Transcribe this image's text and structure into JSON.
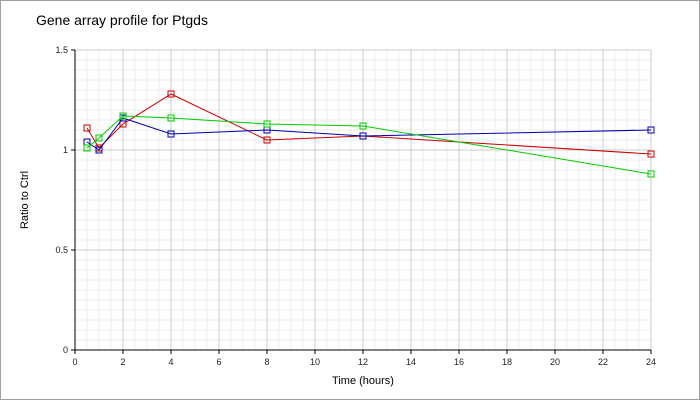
{
  "chart_data": {
    "type": "line",
    "title": "Gene array profile for Ptgds",
    "xlabel": "Time (hours)",
    "ylabel": "Ratio to Ctrl",
    "xlim": [
      0,
      24
    ],
    "ylim": [
      0,
      1.5
    ],
    "xticks": [
      0,
      2,
      4,
      6,
      8,
      10,
      12,
      14,
      16,
      18,
      20,
      22,
      24
    ],
    "yticks": [
      0,
      0.5,
      1,
      1.5
    ],
    "ytick_labels": [
      "0",
      "0.5",
      "1",
      "1.5"
    ],
    "grid": true,
    "series": [
      {
        "color": "#cc0000",
        "x": [
          0.5,
          1,
          2,
          4,
          8,
          12,
          24
        ],
        "y": [
          1.11,
          1.01,
          1.13,
          1.28,
          1.05,
          1.07,
          0.98
        ]
      },
      {
        "color": "#0000aa",
        "x": [
          0.5,
          1,
          2,
          4,
          8,
          12,
          24
        ],
        "y": [
          1.04,
          1.0,
          1.16,
          1.08,
          1.1,
          1.07,
          1.1
        ]
      },
      {
        "color": "#00cc00",
        "x": [
          0.5,
          1,
          2,
          4,
          8,
          12,
          24
        ],
        "y": [
          1.01,
          1.06,
          1.17,
          1.16,
          1.13,
          1.12,
          0.88
        ]
      }
    ]
  }
}
